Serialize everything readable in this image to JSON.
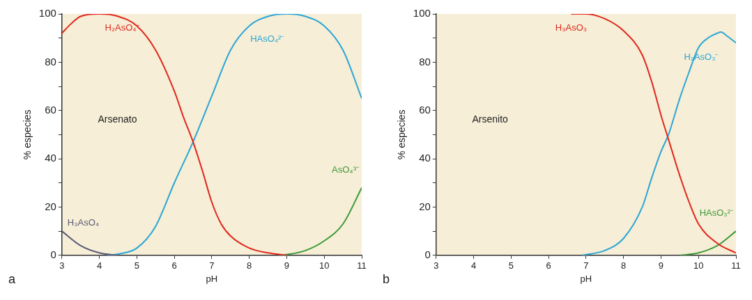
{
  "chart_data": [
    {
      "type": "line",
      "xlabel": "pH",
      "ylabel": "% especies",
      "annotations": [
        "Arsenato",
        "a"
      ],
      "xlim": [
        3,
        11
      ],
      "xticks": [
        3,
        4,
        5,
        6,
        7,
        8,
        9,
        10,
        11
      ],
      "ylim": [
        0,
        100
      ],
      "yticks": [
        0,
        {
          "value": 10,
          "label": null
        },
        20,
        {
          "value": 30,
          "label": null
        },
        40,
        {
          "value": 50,
          "label": null
        },
        60,
        {
          "value": 70,
          "label": null
        },
        80,
        {
          "value": 90,
          "label": null
        },
        100
      ],
      "grid": false,
      "legend": false,
      "marker": "none",
      "line_style": "solid",
      "series": [
        {
          "name": "H₃AsO₄",
          "color": "#5a5a78",
          "x": [
            3,
            3.5,
            4,
            4.5
          ],
          "values": [
            10,
            4,
            1,
            0
          ]
        },
        {
          "name": "H₂AsO₄⁻",
          "color": "#e0281e",
          "x": [
            3,
            3.25,
            3.5,
            4,
            4.5,
            5,
            5.5,
            6,
            6.25,
            6.5,
            6.75,
            7,
            7.25,
            7.5,
            8,
            8.5,
            9
          ],
          "values": [
            92,
            96,
            99,
            100,
            99,
            95,
            85,
            68,
            57,
            47,
            35,
            22,
            13,
            8,
            3,
            1,
            0
          ]
        },
        {
          "name": "HAsO₄²⁻",
          "color": "#2aa6d6",
          "x": [
            4.2,
            4.5,
            5,
            5.5,
            6,
            6.5,
            7,
            7.5,
            8,
            8.5,
            9,
            9.5,
            10,
            10.5,
            11
          ],
          "values": [
            0,
            0.5,
            3,
            12,
            30,
            47,
            66,
            85,
            95,
            99,
            100,
            99,
            95,
            85,
            65
          ]
        },
        {
          "name": "AsO₄³⁻",
          "color": "#3d9a3a",
          "x": [
            8.8,
            9,
            9.5,
            10,
            10.5,
            11
          ],
          "values": [
            0,
            0.3,
            2,
            6,
            13,
            28
          ]
        }
      ]
    },
    {
      "type": "line",
      "xlabel": "pH",
      "ylabel": "% especies",
      "annotations": [
        "Arsenito",
        "b"
      ],
      "xlim": [
        3,
        11
      ],
      "xticks": [
        3,
        4,
        5,
        6,
        7,
        8,
        9,
        10,
        11
      ],
      "ylim": [
        0,
        100
      ],
      "yticks": [
        0,
        {
          "value": 10,
          "label": null
        },
        20,
        {
          "value": 30,
          "label": null
        },
        40,
        {
          "value": 50,
          "label": null
        },
        60,
        {
          "value": 70,
          "label": null
        },
        80,
        {
          "value": 90,
          "label": null
        },
        100
      ],
      "grid": false,
      "legend": false,
      "marker": "none",
      "line_style": "solid",
      "series": [
        {
          "name": "H₃AsO₃",
          "color": "#e0281e",
          "x": [
            6.6,
            7,
            7.5,
            8,
            8.5,
            8.75,
            9,
            9.2,
            9.5,
            9.75,
            10,
            10.5,
            11
          ],
          "values": [
            100,
            100,
            98,
            93,
            83,
            72,
            58,
            48,
            33,
            22,
            13,
            5,
            1
          ]
        },
        {
          "name": "H₂AsO₃⁻",
          "color": "#2aa6d6",
          "x": [
            6.9,
            7.5,
            8,
            8.5,
            8.75,
            9,
            9.2,
            9.5,
            9.75,
            10,
            10.25,
            10.5,
            10.6,
            10.75,
            11
          ],
          "values": [
            0,
            2,
            7,
            20,
            32,
            43,
            50,
            65,
            76,
            86,
            90,
            92,
            92.5,
            91,
            88
          ]
        },
        {
          "name": "HAsO₃²⁻",
          "color": "#3d9a3a",
          "x": [
            9.5,
            10,
            10.5,
            11
          ],
          "values": [
            0,
            1,
            4,
            10
          ]
        }
      ]
    }
  ]
}
